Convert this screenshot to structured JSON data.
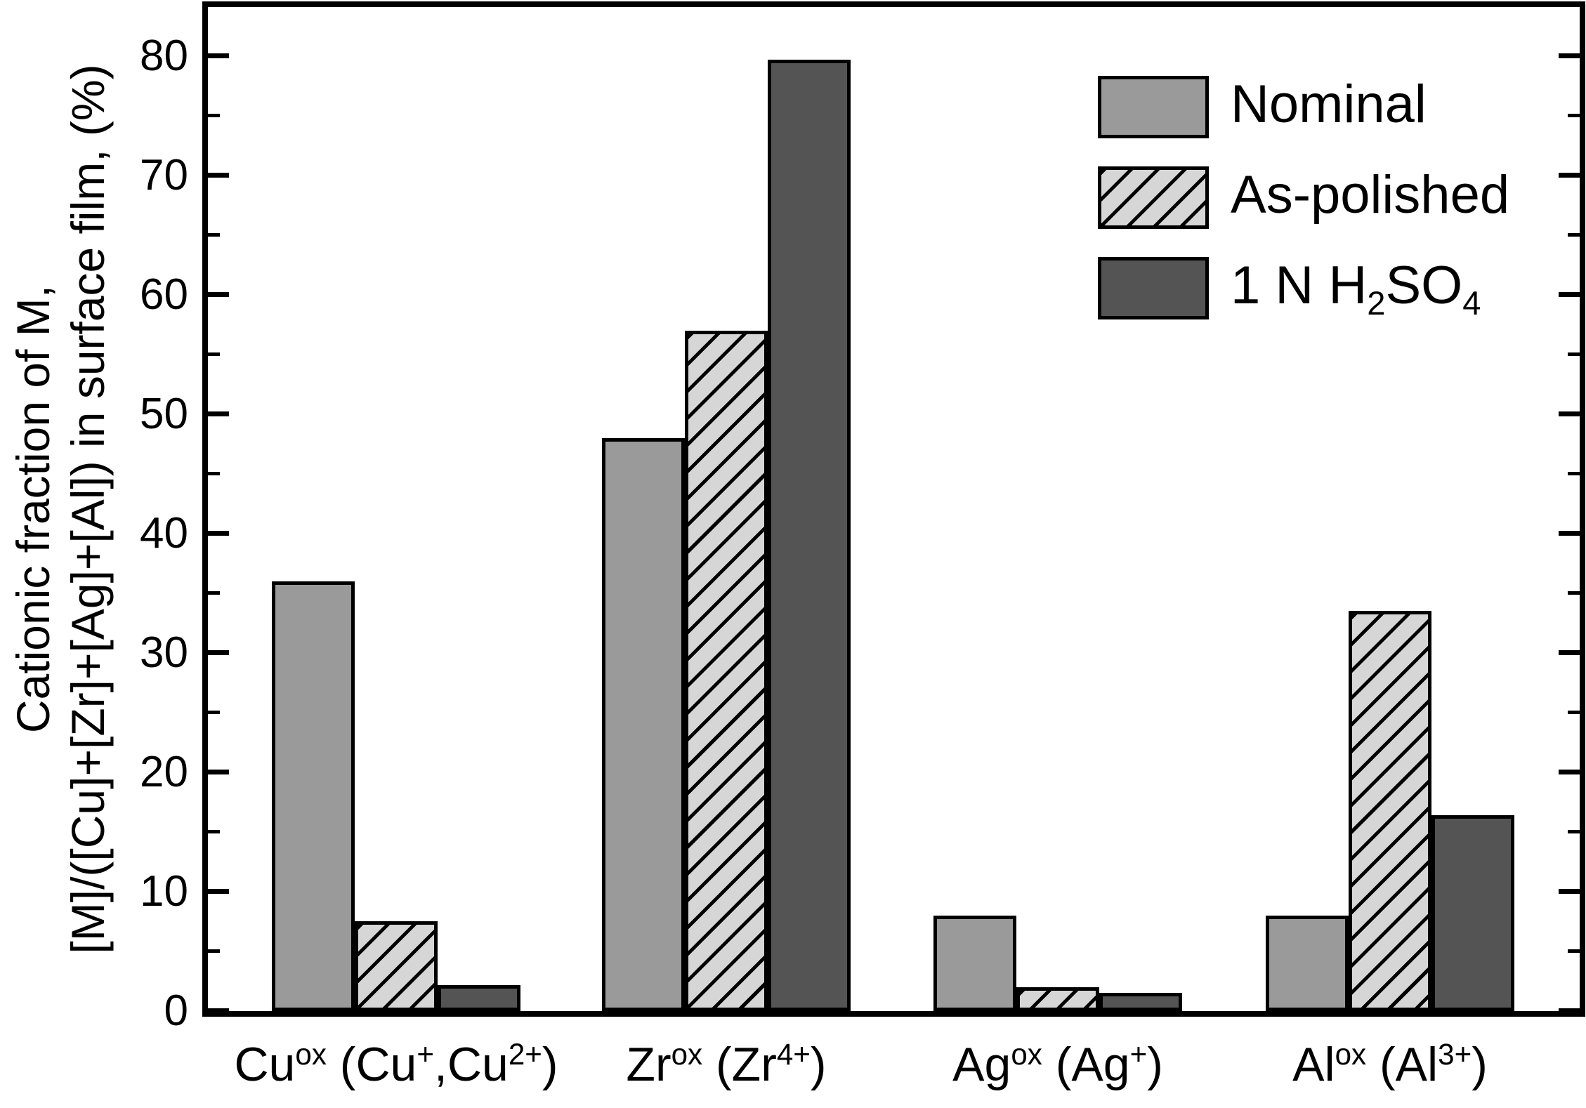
{
  "chart_data": {
    "type": "bar",
    "title": "",
    "ylabel_line1": "Cationic fraction of M,",
    "ylabel_line2": "[M]/([Cu]+[Zr]+[Ag]+[Al]) in surface film, (%)",
    "ylim": [
      0,
      84.6
    ],
    "yticks_major": [
      0,
      10,
      20,
      30,
      40,
      50,
      60,
      70,
      80
    ],
    "yticks_minor": [
      5,
      15,
      25,
      35,
      45,
      55,
      65,
      75
    ],
    "grid": false,
    "legend_position": "top-right",
    "categories": [
      {
        "id": "cu",
        "segments": [
          {
            "t": "Cu"
          },
          {
            "t": "ox",
            "sup": true
          },
          {
            "t": " (Cu"
          },
          {
            "t": "+",
            "sup": true
          },
          {
            "t": ",Cu"
          },
          {
            "t": "2+",
            "sup": true
          },
          {
            "t": ")"
          }
        ]
      },
      {
        "id": "zr",
        "segments": [
          {
            "t": "Zr"
          },
          {
            "t": "ox",
            "sup": true
          },
          {
            "t": " (Zr"
          },
          {
            "t": "4+",
            "sup": true
          },
          {
            "t": ")"
          }
        ]
      },
      {
        "id": "ag",
        "segments": [
          {
            "t": "Ag"
          },
          {
            "t": "ox",
            "sup": true
          },
          {
            "t": " (Ag"
          },
          {
            "t": "+",
            "sup": true
          },
          {
            "t": ")"
          }
        ]
      },
      {
        "id": "al",
        "segments": [
          {
            "t": "Al"
          },
          {
            "t": "ox",
            "sup": true
          },
          {
            "t": " (Al"
          },
          {
            "t": "3+",
            "sup": true
          },
          {
            "t": ")"
          }
        ]
      }
    ],
    "series": [
      {
        "id": "nominal",
        "label_segments": [
          {
            "t": "Nominal"
          }
        ],
        "fill": "#9a9a9a",
        "hatch": false,
        "values": [
          36,
          48,
          8,
          8
        ]
      },
      {
        "id": "as-polished",
        "label_segments": [
          {
            "t": "As-polished"
          }
        ],
        "fill": "#d6d6d6",
        "hatch": true,
        "values": [
          7.5,
          57,
          2,
          33.5
        ]
      },
      {
        "id": "1n-h2so4",
        "label_segments": [
          {
            "t": "1 N H"
          },
          {
            "t": "2",
            "sub": true
          },
          {
            "t": "SO"
          },
          {
            "t": "4",
            "sub": true
          }
        ],
        "fill": "#545454",
        "hatch": false,
        "values": [
          2.2,
          79.7,
          1.5,
          16.4
        ]
      }
    ],
    "bar_outline_color": "#000000",
    "hatch_line_color": "#000000"
  }
}
